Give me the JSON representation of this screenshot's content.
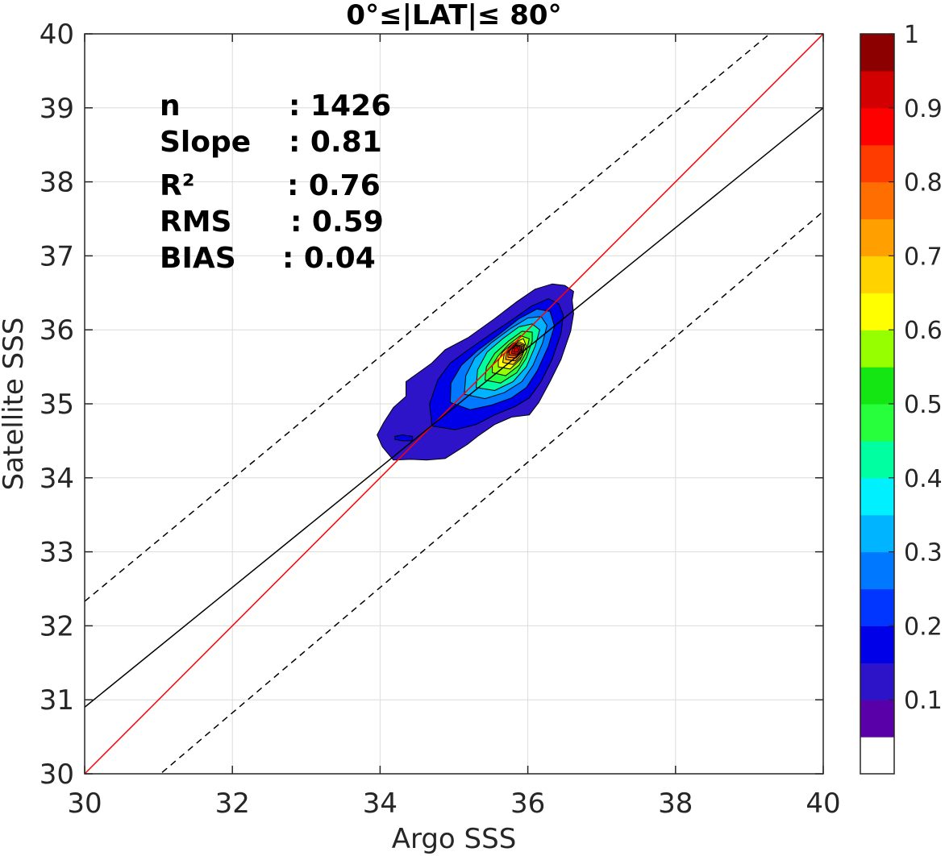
{
  "chart_data": {
    "type": "contour",
    "title": "0°≤|LAT|≤ 80°",
    "xlabel": "Argo SSS",
    "ylabel": "Satellite SSS",
    "xlim": [
      30,
      40
    ],
    "ylim": [
      30,
      40
    ],
    "xticks": [
      "30",
      "32",
      "34",
      "36",
      "38",
      "40"
    ],
    "yticks": [
      "30",
      "31",
      "32",
      "33",
      "34",
      "35",
      "36",
      "37",
      "38",
      "39",
      "40"
    ],
    "grid": true,
    "stats": [
      {
        "label": "n",
        "value": ": 1426"
      },
      {
        "label": "Slope",
        "value": ": 0.81"
      },
      {
        "label": "R²",
        "value": ": 0.76"
      },
      {
        "label": "RMS",
        "value": ": 0.59"
      },
      {
        "label": "BIAS",
        "value": ": 0.04"
      }
    ],
    "lines": [
      {
        "role": "one-to-one",
        "color": "#ff0000",
        "style": "solid",
        "points": [
          [
            30,
            30
          ],
          [
            40,
            40
          ]
        ]
      },
      {
        "role": "regression",
        "color": "#000000",
        "style": "solid",
        "points": [
          [
            30,
            30.9
          ],
          [
            40,
            39.0
          ]
        ]
      },
      {
        "role": "upper-bound",
        "color": "#000000",
        "style": "dashed",
        "points": [
          [
            30,
            32.33
          ],
          [
            40,
            40.6
          ]
        ]
      },
      {
        "role": "lower-bound",
        "color": "#000000",
        "style": "dashed",
        "points": [
          [
            30,
            29.13
          ],
          [
            40,
            37.6
          ]
        ]
      }
    ],
    "density_peak": {
      "x": 35.85,
      "y": 35.72,
      "value": 1
    },
    "colorbar": {
      "range": [
        0,
        1
      ],
      "ticks": [
        "0.1",
        "0.2",
        "0.3",
        "0.4",
        "0.5",
        "0.6",
        "0.7",
        "0.8",
        "0.9",
        "1"
      ],
      "colors": [
        "#ffffff",
        "#5a00a8",
        "#2d14c8",
        "#0000e8",
        "#0036ff",
        "#0078ff",
        "#00b4ff",
        "#00f0ff",
        "#00ffa0",
        "#28ff3c",
        "#14e614",
        "#96ff00",
        "#ffff00",
        "#ffd200",
        "#ffa000",
        "#ff6e00",
        "#ff3c00",
        "#ff0000",
        "#d20000",
        "#8c0000"
      ]
    },
    "contours": [
      {
        "level": 0.05,
        "color": "#2d14c8",
        "points": [
          [
            33.96,
            34.58
          ],
          [
            34.03,
            34.42
          ],
          [
            34.18,
            34.24
          ],
          [
            34.42,
            34.25
          ],
          [
            34.63,
            34.24
          ],
          [
            34.88,
            34.26
          ],
          [
            35.18,
            34.45
          ],
          [
            35.32,
            34.56
          ],
          [
            35.55,
            34.72
          ],
          [
            35.78,
            34.82
          ],
          [
            36.02,
            34.85
          ],
          [
            36.15,
            35.02
          ],
          [
            36.3,
            35.3
          ],
          [
            36.45,
            35.6
          ],
          [
            36.58,
            35.98
          ],
          [
            36.62,
            36.22
          ],
          [
            36.6,
            36.4
          ],
          [
            36.62,
            36.52
          ],
          [
            36.5,
            36.6
          ],
          [
            36.33,
            36.62
          ],
          [
            36.1,
            36.55
          ],
          [
            35.85,
            36.38
          ],
          [
            35.55,
            36.15
          ],
          [
            35.2,
            35.9
          ],
          [
            34.88,
            35.73
          ],
          [
            34.7,
            35.55
          ],
          [
            34.52,
            35.42
          ],
          [
            34.35,
            35.3
          ],
          [
            34.35,
            35.1
          ],
          [
            34.18,
            34.95
          ],
          [
            34.05,
            34.75
          ]
        ]
      },
      {
        "level": 0.1,
        "color": "#0000e8",
        "points": [
          [
            34.7,
            34.7
          ],
          [
            35.02,
            34.65
          ],
          [
            35.3,
            34.72
          ],
          [
            35.55,
            34.85
          ],
          [
            35.82,
            34.96
          ],
          [
            36.02,
            35.08
          ],
          [
            36.18,
            35.3
          ],
          [
            36.33,
            35.6
          ],
          [
            36.45,
            35.95
          ],
          [
            36.48,
            36.2
          ],
          [
            36.42,
            36.35
          ],
          [
            36.28,
            36.42
          ],
          [
            36.05,
            36.32
          ],
          [
            35.78,
            36.13
          ],
          [
            35.48,
            35.93
          ],
          [
            35.18,
            35.72
          ],
          [
            34.95,
            35.55
          ],
          [
            34.78,
            35.32
          ],
          [
            34.67,
            35.0
          ]
        ]
      },
      {
        "level": 0.2,
        "color": "#0078ff",
        "points": [
          [
            34.95,
            35.02
          ],
          [
            35.22,
            34.92
          ],
          [
            35.5,
            34.98
          ],
          [
            35.78,
            35.08
          ],
          [
            35.98,
            35.22
          ],
          [
            36.13,
            35.45
          ],
          [
            36.28,
            35.78
          ],
          [
            36.36,
            36.05
          ],
          [
            36.3,
            36.25
          ],
          [
            36.12,
            36.28
          ],
          [
            35.88,
            36.15
          ],
          [
            35.6,
            35.93
          ],
          [
            35.32,
            35.72
          ],
          [
            35.1,
            35.52
          ],
          [
            34.96,
            35.28
          ]
        ]
      },
      {
        "level": 0.3,
        "color": "#00b4ff",
        "points": [
          [
            35.14,
            35.13
          ],
          [
            35.42,
            35.07
          ],
          [
            35.68,
            35.15
          ],
          [
            35.92,
            35.3
          ],
          [
            36.07,
            35.52
          ],
          [
            36.2,
            35.82
          ],
          [
            36.26,
            36.06
          ],
          [
            36.18,
            36.18
          ],
          [
            36.0,
            36.16
          ],
          [
            35.77,
            36.02
          ],
          [
            35.5,
            35.82
          ],
          [
            35.28,
            35.62
          ],
          [
            35.16,
            35.38
          ]
        ]
      },
      {
        "level": 0.4,
        "color": "#00ffa0",
        "points": [
          [
            35.3,
            35.22
          ],
          [
            35.55,
            35.18
          ],
          [
            35.8,
            35.3
          ],
          [
            35.98,
            35.5
          ],
          [
            36.1,
            35.78
          ],
          [
            36.16,
            36.0
          ],
          [
            36.06,
            36.08
          ],
          [
            35.88,
            36.04
          ],
          [
            35.66,
            35.88
          ],
          [
            35.45,
            35.7
          ],
          [
            35.32,
            35.46
          ]
        ]
      },
      {
        "level": 0.5,
        "color": "#28ff3c",
        "points": [
          [
            35.42,
            35.32
          ],
          [
            35.63,
            35.28
          ],
          [
            35.85,
            35.42
          ],
          [
            35.98,
            35.62
          ],
          [
            36.06,
            35.85
          ],
          [
            36.06,
            35.97
          ],
          [
            35.92,
            35.98
          ],
          [
            35.74,
            35.85
          ],
          [
            35.55,
            35.68
          ],
          [
            35.44,
            35.5
          ]
        ]
      },
      {
        "level": 0.6,
        "color": "#96ff00",
        "points": [
          [
            35.52,
            35.42
          ],
          [
            35.7,
            35.38
          ],
          [
            35.88,
            35.52
          ],
          [
            35.98,
            35.7
          ],
          [
            36.02,
            35.88
          ],
          [
            35.9,
            35.92
          ],
          [
            35.74,
            35.8
          ],
          [
            35.6,
            35.65
          ],
          [
            35.52,
            35.52
          ]
        ]
      },
      {
        "level": 0.65,
        "color": "#ffff00",
        "points": [
          [
            35.6,
            35.5
          ],
          [
            35.76,
            35.47
          ],
          [
            35.9,
            35.6
          ],
          [
            35.98,
            35.78
          ],
          [
            35.94,
            35.88
          ],
          [
            35.8,
            35.82
          ],
          [
            35.66,
            35.7
          ],
          [
            35.6,
            35.58
          ]
        ]
      },
      {
        "level": 0.7,
        "color": "#ffd200",
        "points": [
          [
            35.66,
            35.56
          ],
          [
            35.8,
            35.53
          ],
          [
            35.92,
            35.64
          ],
          [
            35.96,
            35.8
          ],
          [
            35.88,
            35.84
          ],
          [
            35.76,
            35.78
          ],
          [
            35.68,
            35.67
          ]
        ]
      },
      {
        "level": 0.75,
        "color": "#ffa000",
        "points": [
          [
            35.7,
            35.6
          ],
          [
            35.83,
            35.58
          ],
          [
            35.93,
            35.68
          ],
          [
            35.95,
            35.79
          ],
          [
            35.86,
            35.82
          ],
          [
            35.76,
            35.76
          ],
          [
            35.71,
            35.68
          ]
        ]
      },
      {
        "level": 0.8,
        "color": "#ff6e00",
        "points": [
          [
            35.73,
            35.63
          ],
          [
            35.84,
            35.62
          ],
          [
            35.92,
            35.7
          ],
          [
            35.93,
            35.78
          ],
          [
            35.85,
            35.8
          ],
          [
            35.77,
            35.75
          ],
          [
            35.73,
            35.69
          ]
        ]
      },
      {
        "level": 0.85,
        "color": "#ff3c00",
        "points": [
          [
            35.75,
            35.66
          ],
          [
            35.85,
            35.65
          ],
          [
            35.91,
            35.71
          ],
          [
            35.91,
            35.77
          ],
          [
            35.84,
            35.79
          ],
          [
            35.78,
            35.75
          ],
          [
            35.75,
            35.71
          ]
        ]
      },
      {
        "level": 0.9,
        "color": "#ff0000",
        "points": [
          [
            35.78,
            35.68
          ],
          [
            35.86,
            35.67
          ],
          [
            35.9,
            35.72
          ],
          [
            35.89,
            35.77
          ],
          [
            35.83,
            35.78
          ],
          [
            35.79,
            35.74
          ]
        ]
      },
      {
        "level": 0.95,
        "color": "#d20000",
        "points": [
          [
            35.81,
            35.7
          ],
          [
            35.86,
            35.7
          ],
          [
            35.88,
            35.73
          ],
          [
            35.86,
            35.76
          ],
          [
            35.82,
            35.75
          ]
        ]
      }
    ],
    "islands": [
      {
        "level": 0.1,
        "color": "#0000e8",
        "points": [
          [
            34.2,
            34.52
          ],
          [
            34.3,
            34.5
          ],
          [
            34.44,
            34.5
          ],
          [
            34.44,
            34.56
          ],
          [
            34.3,
            34.58
          ],
          [
            34.2,
            34.56
          ]
        ]
      }
    ]
  }
}
